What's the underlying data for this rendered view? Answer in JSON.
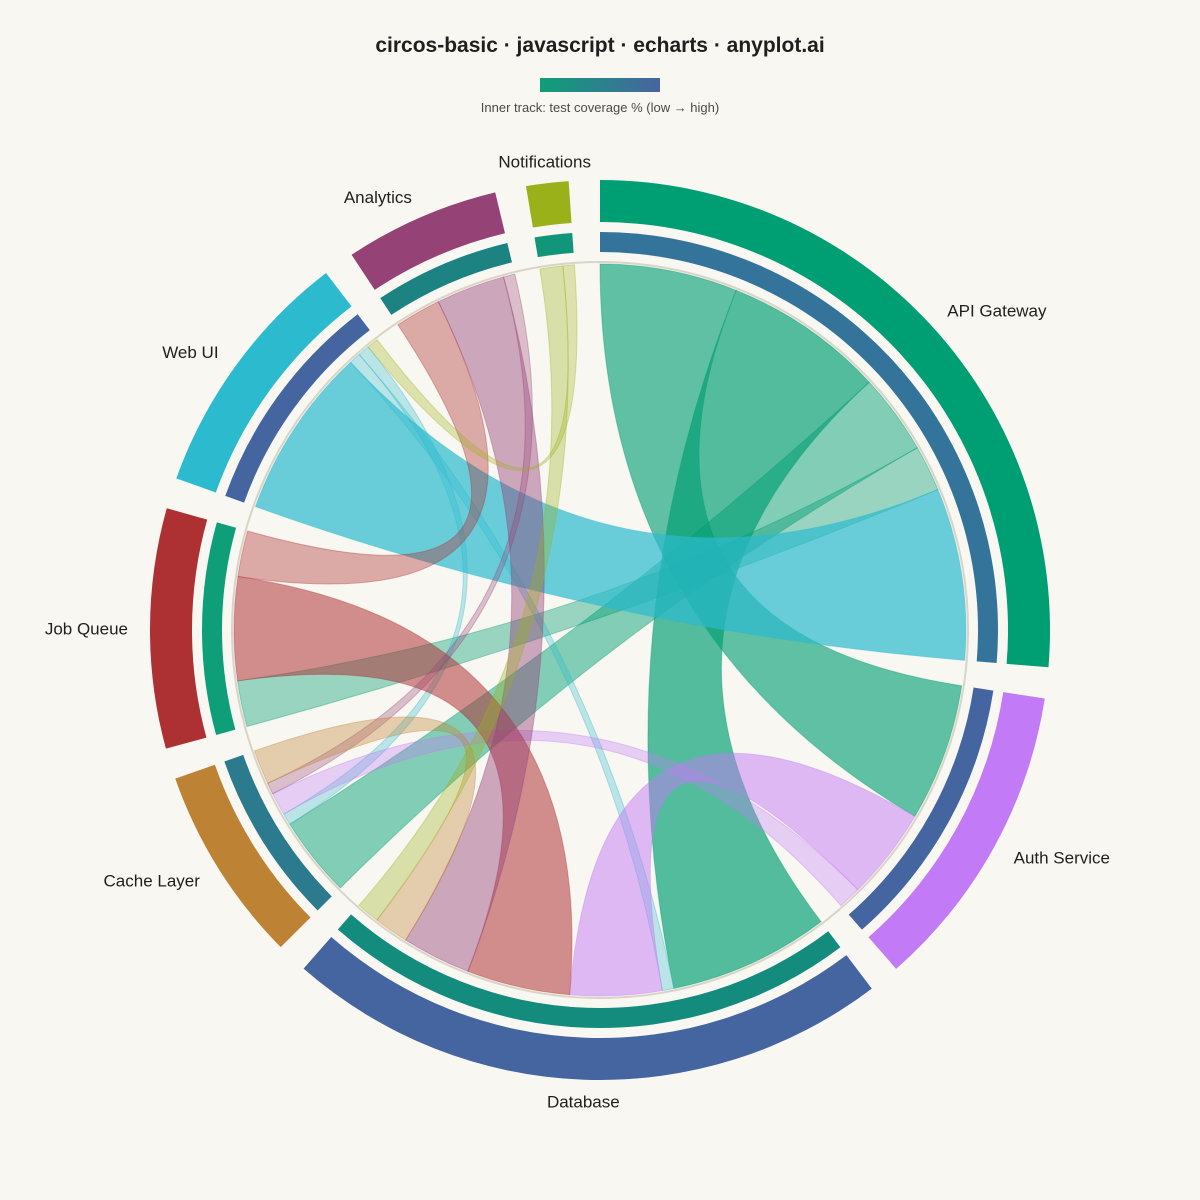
{
  "chart_data": {
    "type": "circos",
    "title": "circos-basic · javascript · echarts · anyplot.ai",
    "legend": {
      "label": "Inner track: test coverage % (low → high)",
      "low_color": "#0E9F79",
      "high_color": "#4864A1"
    },
    "segments": [
      {
        "name": "API Gateway",
        "color": "#009E73",
        "track_color": "#35749A"
      },
      {
        "name": "Auth Service",
        "color": "#C27AF6",
        "track_color": "#4565A1"
      },
      {
        "name": "Database",
        "color": "#4565A1",
        "track_color": "#148C7D"
      },
      {
        "name": "Cache Layer",
        "color": "#BE8234",
        "track_color": "#2C7A8E"
      },
      {
        "name": "Job Queue",
        "color": "#AD3033",
        "track_color": "#0E9F79"
      },
      {
        "name": "Web UI",
        "color": "#2CBBCE",
        "track_color": "#4565A1"
      },
      {
        "name": "Analytics",
        "color": "#954377",
        "track_color": "#1C8282"
      },
      {
        "name": "Notifications",
        "color": "#9AB119",
        "track_color": "#12967A"
      }
    ],
    "links": [
      {
        "source": "API Gateway",
        "target": "Auth Service",
        "value": 12
      },
      {
        "source": "API Gateway",
        "target": "Database",
        "value": 14
      },
      {
        "source": "API Gateway",
        "target": "Cache Layer",
        "value": 7
      },
      {
        "source": "API Gateway",
        "target": "Job Queue",
        "value": 4
      },
      {
        "source": "Web UI",
        "target": "API Gateway",
        "value": 15
      },
      {
        "source": "Web UI",
        "target": "Database",
        "value": 1
      },
      {
        "source": "Web UI",
        "target": "Cache Layer",
        "value": 1
      },
      {
        "source": "Auth Service",
        "target": "Database",
        "value": 8
      },
      {
        "source": "Auth Service",
        "target": "Cache Layer",
        "value": 2
      },
      {
        "source": "Job Queue",
        "target": "Database",
        "value": 9
      },
      {
        "source": "Job Queue",
        "target": "Analytics",
        "value": 4
      },
      {
        "source": "Analytics",
        "target": "Database",
        "value": 6
      },
      {
        "source": "Analytics",
        "target": "Cache Layer",
        "value": 1
      },
      {
        "source": "Cache Layer",
        "target": "Database",
        "value": 3
      },
      {
        "source": "Notifications",
        "target": "Database",
        "value": 2
      },
      {
        "source": "Notifications",
        "target": "Web UI",
        "value": 1
      }
    ]
  }
}
